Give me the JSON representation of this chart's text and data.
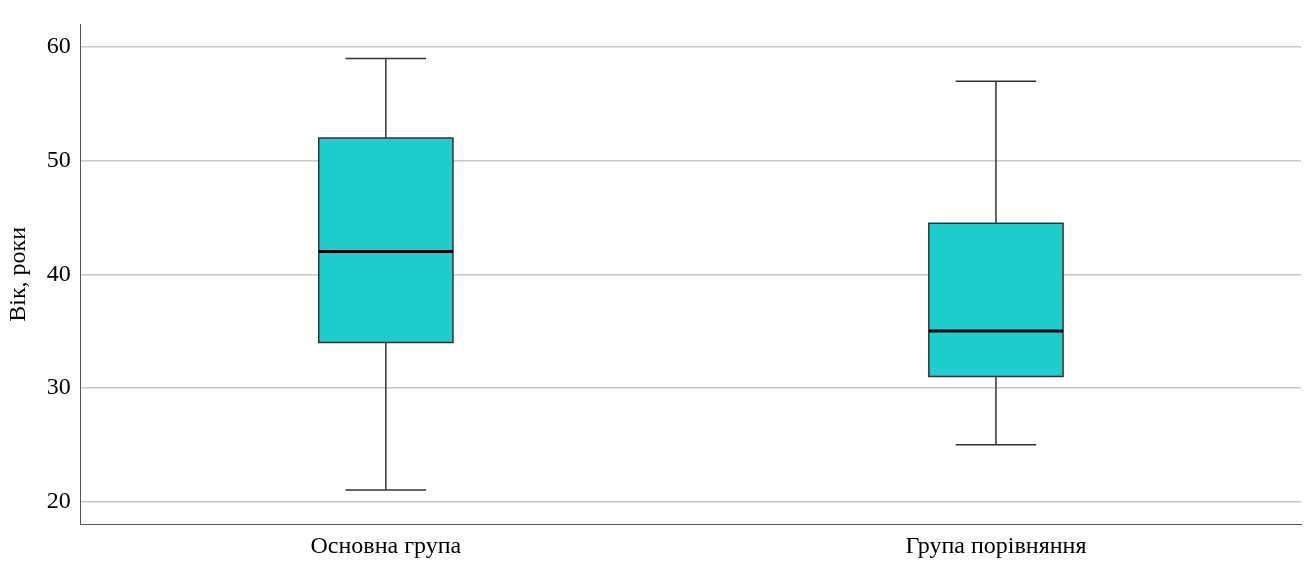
{
  "chart_data": {
    "type": "box",
    "ylabel": "Вік, роки",
    "categories": [
      "Основна група",
      "Група порівняння"
    ],
    "color": "#1ecdcd",
    "boxes": [
      {
        "low": 21,
        "q1": 34,
        "median": 42,
        "q3": 52,
        "high": 59
      },
      {
        "low": 25,
        "q1": 31,
        "median": 35,
        "q3": 44.5,
        "high": 57
      }
    ],
    "ylim": [
      18,
      62
    ],
    "yticks": [
      20,
      30,
      40,
      50,
      60
    ],
    "grid": "y",
    "legend": false
  }
}
